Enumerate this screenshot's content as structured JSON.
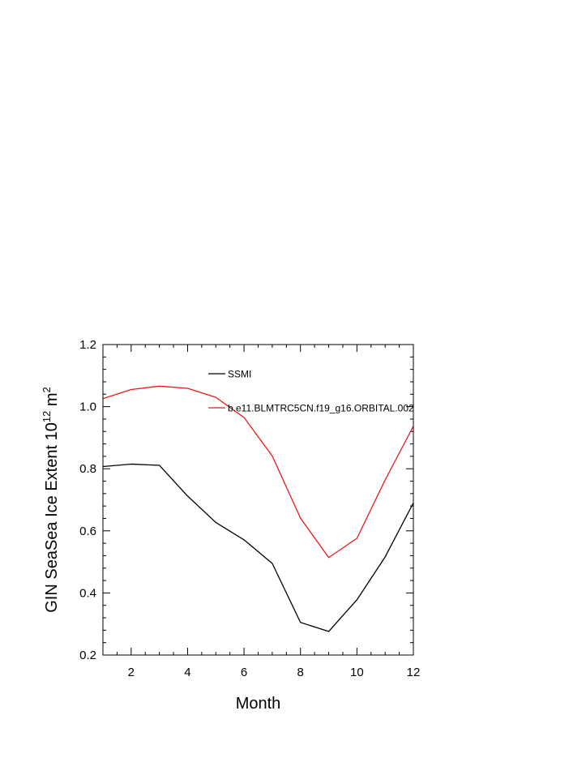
{
  "chart_data": {
    "type": "line",
    "xlabel": "Month",
    "ylabel": {
      "main": "GIN SeaSea Ice Extent 10",
      "superscript": "12",
      "unit": " m",
      "unit_superscript": "2"
    },
    "xlim": [
      1,
      12
    ],
    "ylim": [
      0.2,
      1.2
    ],
    "x_ticks": [
      2,
      4,
      6,
      8,
      10,
      12
    ],
    "x_tick_labels": [
      "2",
      "4",
      "6",
      "8",
      "10",
      "12"
    ],
    "y_ticks": [
      0.2,
      0.4,
      0.6,
      0.8,
      1.0,
      1.2
    ],
    "y_tick_labels": [
      "0.2",
      "0.4",
      "0.6",
      "0.8",
      "1.0",
      "1.2"
    ],
    "grid": false,
    "legend_position": "top-right",
    "x": [
      1,
      2,
      3,
      4,
      5,
      6,
      7,
      8,
      9,
      10,
      11,
      12
    ],
    "series": [
      {
        "name": "SSMI",
        "color": "#000000",
        "values": [
          0.807,
          0.815,
          0.811,
          0.712,
          0.627,
          0.571,
          0.495,
          0.305,
          0.276,
          0.378,
          0.516,
          0.69
        ]
      },
      {
        "name": "b.e11.BLMTRC5CN.f19_g16.ORBITAL.002",
        "color": "#e8191a",
        "values": [
          1.026,
          1.055,
          1.066,
          1.059,
          1.03,
          0.965,
          0.841,
          0.641,
          0.514,
          0.576,
          0.764,
          0.937
        ]
      }
    ]
  }
}
